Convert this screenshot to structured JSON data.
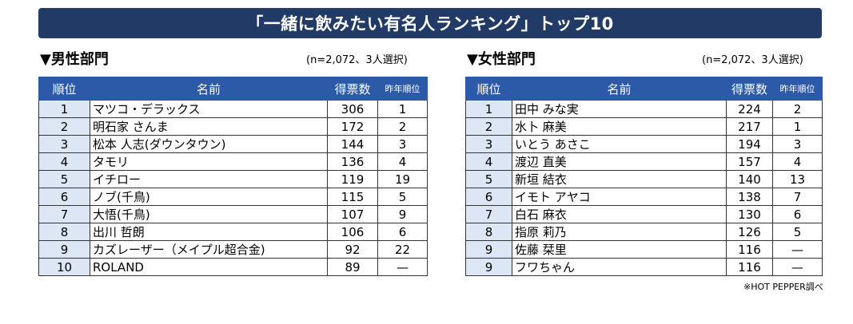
{
  "title": "「一緒に飲みたい有名人ランキング」トップ10",
  "male": {
    "heading": "▼男性部門",
    "note": "(n=2,072、3人選択)",
    "headers": [
      "順位",
      "名前",
      "得票数",
      "昨年順位"
    ],
    "rows": [
      {
        "rank": "1",
        "name": "マツコ・デラックス",
        "votes": "306",
        "last": "1"
      },
      {
        "rank": "2",
        "name": "明石家 さんま",
        "votes": "172",
        "last": "2"
      },
      {
        "rank": "3",
        "name": "松本 人志(ダウンタウン)",
        "votes": "144",
        "last": "3"
      },
      {
        "rank": "4",
        "name": "タモリ",
        "votes": "136",
        "last": "4"
      },
      {
        "rank": "5",
        "name": "イチロー",
        "votes": "119",
        "last": "19"
      },
      {
        "rank": "6",
        "name": "ノブ(千鳥)",
        "votes": "115",
        "last": "5"
      },
      {
        "rank": "7",
        "name": "大悟(千鳥)",
        "votes": "107",
        "last": "9"
      },
      {
        "rank": "8",
        "name": "出川 哲朗",
        "votes": "106",
        "last": "6"
      },
      {
        "rank": "9",
        "name": "カズレーザー（メイプル超合金)",
        "votes": "92",
        "last": "22"
      },
      {
        "rank": "10",
        "name": "ROLAND",
        "votes": "89",
        "last": "—"
      }
    ]
  },
  "female": {
    "heading": "▼女性部門",
    "note": "(n=2,072、3人選択)",
    "headers": [
      "順位",
      "名前",
      "得票数",
      "昨年順位"
    ],
    "rows": [
      {
        "rank": "1",
        "name": "田中 みな実",
        "votes": "224",
        "last": "2"
      },
      {
        "rank": "2",
        "name": "水卜 麻美",
        "votes": "217",
        "last": "1"
      },
      {
        "rank": "3",
        "name": "いとう あさこ",
        "votes": "194",
        "last": "3"
      },
      {
        "rank": "4",
        "name": "渡辺 直美",
        "votes": "157",
        "last": "4"
      },
      {
        "rank": "5",
        "name": "新垣 結衣",
        "votes": "140",
        "last": "13"
      },
      {
        "rank": "6",
        "name": "イモト アヤコ",
        "votes": "138",
        "last": "7"
      },
      {
        "rank": "7",
        "name": "白石 麻衣",
        "votes": "130",
        "last": "6"
      },
      {
        "rank": "8",
        "name": "指原 莉乃",
        "votes": "126",
        "last": "5"
      },
      {
        "rank": "9",
        "name": "佐藤 栞里",
        "votes": "116",
        "last": "—"
      },
      {
        "rank": "9",
        "name": "フワちゃん",
        "votes": "116",
        "last": "—"
      }
    ]
  },
  "footnote": "※HOT PEPPER調べ"
}
